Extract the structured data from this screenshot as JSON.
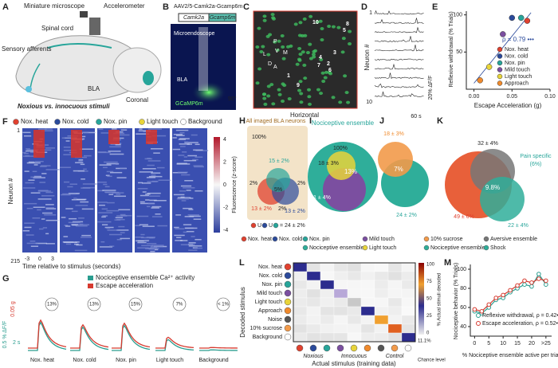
{
  "panels": {
    "a": {
      "letter": "A",
      "microscope": "Miniature microscope",
      "accelerometer": "Accelerometer",
      "spinal_cord": "Spinal cord",
      "afferents": "Sensory afferents",
      "bla": "BLA",
      "coronal": "Coronal",
      "caption": "Noxious vs. innocuous stimuli"
    },
    "b": {
      "letter": "B",
      "virus": "AAV2/5-Camk2a-Gcamp6m",
      "promoter": "Camk2a",
      "gene": "Gcamp6m",
      "microendoscope": "Microendoscope",
      "bla": "BLA",
      "indicator": "GCaMP6m",
      "angle": "90°"
    },
    "c": {
      "letter": "C",
      "plane": "Horizontal",
      "cells": [
        "1",
        "2",
        "3",
        "4",
        "5",
        "6",
        "7",
        "8",
        "9",
        "10"
      ],
      "compass": [
        "P",
        "V",
        "M",
        "L",
        "D",
        "A"
      ]
    },
    "d": {
      "letter": "D",
      "axis": "Neuron #",
      "first": "1",
      "last": "10",
      "time_scale": "60 s",
      "signal_scale": "20% ΔF/F"
    },
    "e": {
      "letter": "E"
    },
    "f": {
      "letter": "F",
      "stimuli": [
        "Nox. heat",
        "Nox. cold",
        "Nox. pin",
        "Light touch",
        "Background"
      ],
      "neuron_axis": "Neuron #",
      "neuron_first": "1",
      "neuron_last": "215",
      "time_ticks": [
        "-3",
        "0",
        "3"
      ],
      "time_axis": "Time relative to stimulus (seconds)",
      "colorbar_ticks": [
        "4",
        "2",
        "0",
        "-2",
        "-4"
      ],
      "colorbar_label": "Fluorescence (z-score)"
    },
    "g": {
      "letter": "G",
      "legend": [
        "Nociceptive ensemble Ca²⁺ activity",
        "Escape acceleration"
      ],
      "scale_accel": "0.05 g",
      "scale_signal": "0.5 % ΔF/F",
      "scale_time": "2 s",
      "fractions": [
        "13%",
        "13%",
        "15%",
        "7%",
        "< 1%"
      ],
      "stimuli": [
        "Nox. heat",
        "Nox. cold",
        "Nox. pin",
        "Light touch",
        "Background"
      ]
    },
    "h": {
      "letter": "H",
      "title": "All imaged BLA neurons",
      "total": "100%",
      "values": [
        "15 ± 2%",
        "2%",
        "5%",
        "2%",
        "13 ± 2%",
        "2%",
        "13 ± 2%"
      ],
      "union": [
        "U",
        "U"
      ],
      "equals": "= 24 ± 2%"
    },
    "i": {
      "letter": "I",
      "title": "Nociceptive ensemble",
      "total": "100%",
      "values": [
        "18 ± 3%",
        "13%",
        "31 ± 4%"
      ]
    },
    "j": {
      "letter": "J",
      "values": [
        "18 ± 3%",
        "7%",
        "24 ± 2%"
      ]
    },
    "k": {
      "letter": "K",
      "values": [
        "32 ± 4%",
        "9.8%",
        "49 ± 6%",
        "22 ± 4%"
      ],
      "callout": "Pain specific",
      "callout_value": "(6%)"
    },
    "hk_legend": [
      "Nox. heat",
      "Nox. cold",
      "Nox. pin",
      "Nociceptive ensemble",
      "Mild touch",
      "Light touch",
      "10% sucrose",
      "Nociceptive ensemble",
      "Aversive ensemble",
      "Shock"
    ],
    "l": {
      "letter": "L",
      "rows": [
        "Nox. heat",
        "Nox. cold",
        "Nox. pin",
        "Mild touch",
        "Light touch",
        "Approach",
        "Noise",
        "10% sucrose",
        "Background"
      ],
      "y_axis": "Decoded stimulus",
      "groups": [
        "Noxious",
        "Innocuous",
        "Control"
      ],
      "x_axis": "Actual stimulus (training data)",
      "colorbar_ticks": [
        "100",
        "75",
        "50",
        "25",
        "0"
      ],
      "colorbar_label": "% Actual stimuli decoded",
      "chance_value": "11.1%",
      "chance_label": "Chance level"
    },
    "m": {
      "letter": "M"
    }
  },
  "chart_data": [
    {
      "type": "scatter",
      "x_label": "Escape Acceleration (g)",
      "y_label": "Reflexive withdrawal (% Trials)",
      "annotation": "ρ = 0.79 •••",
      "xlim": [
        -0.01,
        0.1
      ],
      "ylim": [
        0,
        105
      ],
      "xticks": [
        {
          "value": 0,
          "label": "0.00"
        },
        {
          "value": 0.05,
          "label": "0.05"
        },
        {
          "value": 0.1,
          "label": "0.10"
        }
      ],
      "yticks": [
        50,
        100
      ],
      "series": [
        {
          "name": "Nox. heat",
          "color": "#e0412f",
          "x": [
            0.07
          ],
          "values": [
            92
          ]
        },
        {
          "name": "Nox. cold",
          "color": "#2b4a9b",
          "x": [
            0.05
          ],
          "values": [
            96
          ]
        },
        {
          "name": "Nox. pin",
          "color": "#27a59a",
          "x": [
            0.062
          ],
          "values": [
            96
          ]
        },
        {
          "name": "Mild touch",
          "color": "#7b4fa0",
          "x": [
            0.038
          ],
          "values": [
            74
          ]
        },
        {
          "name": "Light touch",
          "color": "#e8d43a",
          "x": [
            0.02
          ],
          "values": [
            30
          ]
        },
        {
          "name": "Approach",
          "color": "#f08a2c",
          "x": [
            0.008
          ],
          "values": [
            12
          ]
        }
      ]
    },
    {
      "type": "line",
      "x_label": "% Nociceptive ensemble active per trial",
      "y_label": "Nociceptive behavior (% Trials)",
      "xlim": [
        -1.5,
        27
      ],
      "ylim": [
        30,
        105
      ],
      "xticks": [
        0,
        5,
        10,
        15,
        20,
        {
          "value": 25,
          "label": ">25"
        }
      ],
      "yticks": [
        40,
        60,
        80,
        100
      ],
      "x": [
        0,
        2.5,
        5,
        7.5,
        10,
        12.5,
        15,
        17.5,
        20,
        22.5,
        25
      ],
      "series": [
        {
          "name": "Reflexive withdrawal, ρ = 0.42•••",
          "color": "#2a9d8f",
          "values": [
            56,
            54,
            60,
            68,
            70,
            76,
            80,
            84,
            82,
            95,
            84
          ]
        },
        {
          "name": "Escape acceleration, ρ = 0.52•••",
          "color": "#d63a2f",
          "values": [
            58,
            56,
            63,
            70,
            73,
            78,
            83,
            88,
            86,
            90,
            88
          ]
        }
      ]
    }
  ]
}
